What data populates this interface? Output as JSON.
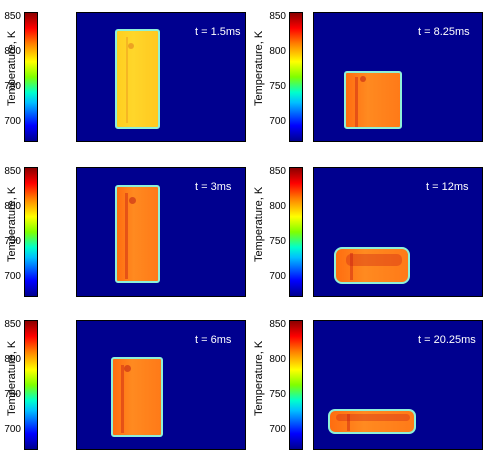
{
  "colorbar": {
    "label": "Temperature, K",
    "ticks": [
      "850",
      "800",
      "750",
      "700"
    ]
  },
  "panels": [
    {
      "time_label": "t = 1.5ms"
    },
    {
      "time_label": "t = 8.25ms"
    },
    {
      "time_label": "t = 3ms"
    },
    {
      "time_label": "t = 12ms"
    },
    {
      "time_label": "t = 6ms"
    },
    {
      "time_label": "t = 20.25ms"
    }
  ]
}
